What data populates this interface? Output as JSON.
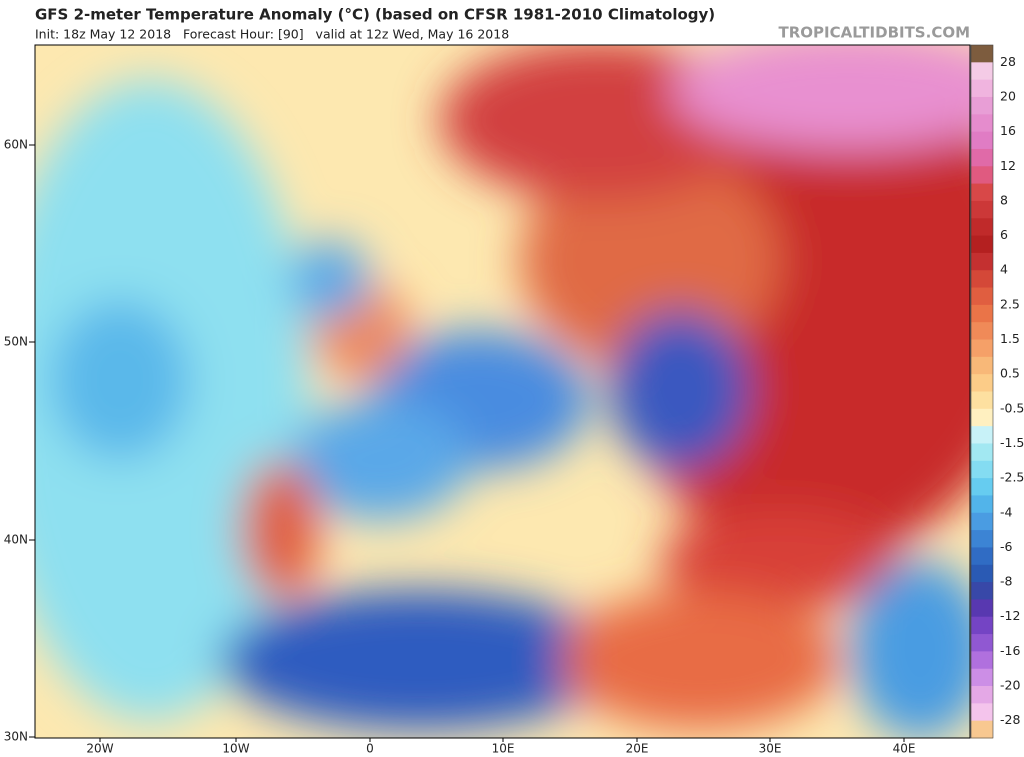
{
  "header": {
    "title": "GFS 2-meter Temperature Anomaly (°C) (based on CFSR 1981-2010 Climatology)",
    "subtitle": "Init: 18z May 12 2018   Forecast Hour: [90]   valid at 12z Wed, May 16 2018",
    "site": "TROPICALTIDBITS.COM"
  },
  "map": {
    "lat_labels": [
      "60N",
      "50N",
      "40N",
      "30N"
    ],
    "lon_labels": [
      "20W",
      "10W",
      "0",
      "10E",
      "20E",
      "30E",
      "40E"
    ]
  },
  "colorbar": {
    "labels": [
      "28",
      "20",
      "16",
      "12",
      "8",
      "6",
      "4",
      "2.5",
      "1.5",
      "0.5",
      "-0.5",
      "-1.5",
      "-2.5",
      "-4",
      "-6",
      "-8",
      "-12",
      "-16",
      "-20",
      "-28"
    ],
    "colors": [
      "#7d5c3e",
      "#f4cbe6",
      "#f0b4df",
      "#e89ed6",
      "#e58ccd",
      "#e07cc4",
      "#e06aa8",
      "#e05a80",
      "#d84848",
      "#cc3838",
      "#c02a2a",
      "#b42020",
      "#c43030",
      "#d44838",
      "#e05e40",
      "#ea7448",
      "#f08a58",
      "#f5a068",
      "#f8b878",
      "#fccc88",
      "#fde0a0",
      "#fff0c0",
      "#c8f2f8",
      "#a2e8f2",
      "#84dcf2",
      "#66ccf0",
      "#52b4ea",
      "#4a9ce2",
      "#3c84d4",
      "#306cc4",
      "#2a5ab4",
      "#3848a8",
      "#5838b0",
      "#7444c4",
      "#9058d2",
      "#b070de",
      "#cc8ee6",
      "#e4a8e6",
      "#f4c4ec",
      "#f8c890"
    ]
  }
}
